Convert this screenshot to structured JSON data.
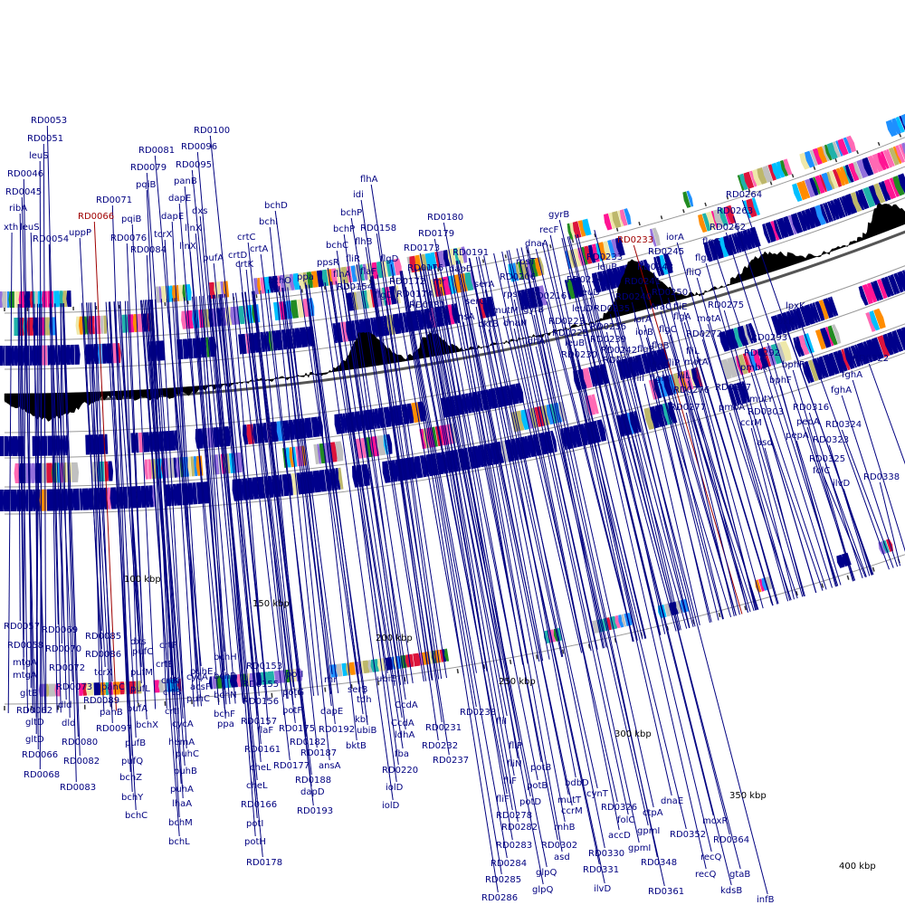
{
  "colors": {
    "label": "#000080",
    "highlight": "#a00000",
    "ring_line": "#999999",
    "dark_ring": "#555555",
    "feature_default": "#00008b",
    "gc_skew": "#000000",
    "palette": [
      "#00008b",
      "#1e90ff",
      "#00bfff",
      "#228b22",
      "#ff1493",
      "#dc143c",
      "#ff8c00",
      "#eee8aa",
      "#bdb76b",
      "#9370db",
      "#c0c0c0",
      "#20b2aa",
      "#ff69b4"
    ]
  },
  "scale_labels": [
    "100 kbp",
    "150 kbp",
    "200 kbp",
    "250 kbp",
    "300 kbp",
    "350 kbp",
    "400 kbp"
  ],
  "upper_labels": [
    [
      "xth",
      4,
      254
    ],
    [
      "ribA",
      10,
      233
    ],
    [
      "leuS",
      22,
      254
    ],
    [
      "RD0045",
      6,
      215
    ],
    [
      "RD0046",
      8,
      195
    ],
    [
      "leuS",
      32,
      175
    ],
    [
      "RD0051",
      30,
      156
    ],
    [
      "RD0053",
      34,
      136
    ],
    [
      "RD0054",
      36,
      267
    ],
    [
      "uppP",
      76,
      260
    ],
    [
      "RD0066",
      86,
      242
    ],
    [
      "RD0071",
      106,
      224
    ],
    [
      "RD0076",
      122,
      266
    ],
    [
      "pqiB",
      134,
      245
    ],
    [
      "RD0079",
      144,
      188
    ],
    [
      "pqiB",
      150,
      207
    ],
    [
      "RD0081",
      153,
      169
    ],
    [
      "RD0084",
      144,
      279
    ],
    [
      "tcrX",
      170,
      262
    ],
    [
      "dapE",
      178,
      242
    ],
    [
      "dapE",
      186,
      222
    ],
    [
      "panB",
      192,
      203
    ],
    [
      "RD0095",
      194,
      185
    ],
    [
      "RD0096",
      200,
      165
    ],
    [
      "RD0100",
      214,
      147
    ],
    [
      "dxs",
      212,
      236
    ],
    [
      "linX",
      204,
      255
    ],
    [
      "linX",
      198,
      275
    ],
    [
      "pufA",
      224,
      288
    ],
    [
      "crtC",
      262,
      265
    ],
    [
      "crtD",
      252,
      285
    ],
    [
      "crtK",
      260,
      295
    ],
    [
      "crtA",
      276,
      278
    ],
    [
      "bchI",
      286,
      248
    ],
    [
      "bchD",
      292,
      230
    ],
    [
      "bchO",
      296,
      313
    ],
    [
      "ppa",
      328,
      309
    ],
    [
      "idi",
      390,
      218
    ],
    [
      "flhA",
      398,
      201
    ],
    [
      "bchP",
      376,
      238
    ],
    [
      "bchP",
      368,
      256
    ],
    [
      "bchC",
      360,
      274
    ],
    [
      "ppsR",
      350,
      293
    ],
    [
      "flhA",
      368,
      306
    ],
    [
      "fliR",
      382,
      289
    ],
    [
      "flhB",
      392,
      270
    ],
    [
      "RD0158",
      398,
      255
    ],
    [
      "flaF",
      398,
      303
    ],
    [
      "RD0154",
      372,
      320
    ],
    [
      "flgD",
      420,
      289
    ],
    [
      "flgD",
      414,
      329
    ],
    [
      "RD0172",
      430,
      314
    ],
    [
      "RD0173",
      446,
      277
    ],
    [
      "RD0174",
      438,
      328
    ],
    [
      "RD0176",
      450,
      299
    ],
    [
      "RD0179",
      462,
      261
    ],
    [
      "RD0180",
      472,
      243
    ],
    [
      "RD0181",
      452,
      340
    ],
    [
      "rnr",
      478,
      314
    ],
    [
      "RD0191",
      500,
      282
    ],
    [
      "dapD",
      496,
      300
    ],
    [
      "serA",
      524,
      317
    ],
    [
      "serC",
      514,
      336
    ],
    [
      "ansA",
      500,
      353
    ],
    [
      "bktB",
      528,
      361
    ],
    [
      "dnaA",
      580,
      272
    ],
    [
      "recF",
      596,
      257
    ],
    [
      "gyrB",
      606,
      240
    ],
    [
      "RD0206",
      552,
      309
    ],
    [
      "rpsT",
      570,
      292
    ],
    [
      "rpsT",
      556,
      328
    ],
    [
      "mutM",
      544,
      346
    ],
    [
      "dnaN",
      556,
      360
    ],
    [
      "gyrB",
      578,
      345
    ],
    [
      "RD0216",
      586,
      330
    ],
    [
      "ldhA",
      580,
      380
    ],
    [
      "RD0223",
      606,
      358
    ],
    [
      "RD0225",
      610,
      371
    ],
    [
      "leuB",
      624,
      382
    ],
    [
      "RD0230",
      620,
      395
    ],
    [
      "RD0224",
      626,
      312
    ],
    [
      "leuD",
      640,
      326
    ],
    [
      "leuD",
      632,
      344
    ],
    [
      "RD0235",
      656,
      344
    ],
    [
      "RD0236",
      652,
      364
    ],
    [
      "RD0239",
      652,
      378
    ],
    [
      "RD0242",
      664,
      390
    ],
    [
      "RD0244",
      666,
      401
    ],
    [
      "RD0233",
      682,
      268
    ],
    [
      "RD0233",
      648,
      287
    ],
    [
      "leuB",
      660,
      298
    ],
    [
      "RD0240",
      680,
      331
    ],
    [
      "RD0241",
      690,
      314
    ],
    [
      "RD0243",
      704,
      298
    ],
    [
      "RD0245",
      716,
      281
    ],
    [
      "iorA",
      736,
      265
    ],
    [
      "iorA",
      700,
      356
    ],
    [
      "iorB",
      702,
      370
    ],
    [
      "flgB",
      704,
      389
    ],
    [
      "fliI",
      700,
      421
    ],
    [
      "flgH",
      718,
      421
    ],
    [
      "flgB",
      720,
      407
    ],
    [
      "fliP",
      736,
      404
    ],
    [
      "flgB",
      720,
      385
    ],
    [
      "AraC",
      718,
      342
    ],
    [
      "RD0250",
      720,
      326
    ],
    [
      "flgC",
      728,
      367
    ],
    [
      "flgA",
      744,
      353
    ],
    [
      "fliE",
      744,
      342
    ],
    [
      "fliQ",
      758,
      304
    ],
    [
      "flgF",
      768,
      288
    ],
    [
      "flgG",
      776,
      270
    ],
    [
      "RD0262",
      784,
      254
    ],
    [
      "RD0263",
      792,
      236
    ],
    [
      "RD0264",
      802,
      218
    ],
    [
      "motA",
      770,
      355
    ],
    [
      "RD0272",
      758,
      372
    ],
    [
      "fliL",
      758,
      391
    ],
    [
      "motA",
      756,
      403
    ],
    [
      "fliL",
      748,
      418
    ],
    [
      "RD0275",
      782,
      340
    ],
    [
      "RD0276",
      744,
      434
    ],
    [
      "RD0277",
      740,
      453
    ],
    [
      "RD0287",
      790,
      431
    ],
    [
      "pmbA",
      794,
      453
    ],
    [
      "pmbA",
      818,
      409
    ],
    [
      "mutY",
      828,
      444
    ],
    [
      "RD0292",
      822,
      393
    ],
    [
      "RD0293",
      830,
      376
    ],
    [
      "lpxK",
      856,
      358
    ],
    [
      "lpxK",
      868,
      341
    ],
    [
      "ccrM",
      818,
      470
    ],
    [
      "RD0303",
      826,
      458
    ],
    [
      "asd",
      836,
      492
    ],
    [
      "bphF",
      850,
      423
    ],
    [
      "bphF",
      864,
      406
    ],
    [
      "RD0316",
      876,
      453
    ],
    [
      "pepA",
      868,
      484
    ],
    [
      "pepA",
      880,
      469
    ],
    [
      "RD0322",
      942,
      399
    ],
    [
      "fghA",
      930,
      417
    ],
    [
      "fghA",
      918,
      434
    ],
    [
      "RD0324",
      912,
      472
    ],
    [
      "RD0323",
      898,
      489
    ],
    [
      "RD0325",
      894,
      510
    ],
    [
      "folC",
      898,
      523
    ],
    [
      "ilvD",
      920,
      537
    ],
    [
      "RD0338",
      954,
      530
    ]
  ],
  "lower_labels": [
    [
      "RD0057",
      4,
      695
    ],
    [
      "RD0058",
      8,
      716
    ],
    [
      "mtgA",
      14,
      735
    ],
    [
      "mtgA",
      14,
      749
    ],
    [
      "gltB",
      22,
      769
    ],
    [
      "RD0062",
      18,
      788
    ],
    [
      "gltD",
      28,
      801
    ],
    [
      "gltD",
      28,
      820
    ],
    [
      "RD0066",
      24,
      837
    ],
    [
      "RD0068",
      26,
      859
    ],
    [
      "RD0069",
      46,
      699
    ],
    [
      "RD0070",
      50,
      720
    ],
    [
      "RD0072",
      54,
      741
    ],
    [
      "RD0073",
      62,
      762
    ],
    [
      "dld",
      64,
      782
    ],
    [
      "dld",
      68,
      802
    ],
    [
      "RD0080",
      68,
      823
    ],
    [
      "RD0082",
      70,
      844
    ],
    [
      "RD0083",
      66,
      873
    ],
    [
      "RD0085",
      94,
      706
    ],
    [
      "RD0086",
      94,
      726
    ],
    [
      "tcrX",
      104,
      746
    ],
    [
      "panC",
      112,
      762
    ],
    [
      "panB",
      110,
      790
    ],
    [
      "RD0089",
      92,
      777
    ],
    [
      "RD0097",
      106,
      808
    ],
    [
      "dxs",
      144,
      712
    ],
    [
      "pufC",
      146,
      723
    ],
    [
      "pufM",
      144,
      746
    ],
    [
      "pufL",
      144,
      764
    ],
    [
      "pufA",
      140,
      786
    ],
    [
      "pufB",
      138,
      824
    ],
    [
      "pufQ",
      134,
      844
    ],
    [
      "bchZ",
      132,
      862
    ],
    [
      "bchY",
      134,
      884
    ],
    [
      "bchC",
      138,
      904
    ],
    [
      "bchX",
      150,
      804
    ],
    [
      "crtF",
      176,
      716
    ],
    [
      "crtE",
      172,
      737
    ],
    [
      "crtK",
      178,
      755
    ],
    [
      "crtB",
      180,
      768
    ],
    [
      "crtI",
      182,
      789
    ],
    [
      "cycA",
      190,
      803
    ],
    [
      "hemA",
      186,
      823
    ],
    [
      "puhC",
      194,
      836
    ],
    [
      "puhB",
      192,
      855
    ],
    [
      "puhA",
      188,
      875
    ],
    [
      "lhaA",
      190,
      891
    ],
    [
      "bchM",
      186,
      912
    ],
    [
      "bchL",
      186,
      933
    ],
    [
      "cycA",
      206,
      751
    ],
    [
      "puhE",
      210,
      745
    ],
    [
      "acsF",
      210,
      762
    ],
    [
      "puhC",
      206,
      775
    ],
    [
      "bchH",
      236,
      729
    ],
    [
      "bchB",
      236,
      750
    ],
    [
      "bchN",
      236,
      771
    ],
    [
      "bchF",
      236,
      792
    ],
    [
      "ppa",
      240,
      803
    ],
    [
      "RD0153",
      272,
      739
    ],
    [
      "RD0155",
      268,
      759
    ],
    [
      "RD0156",
      268,
      778
    ],
    [
      "RD0157",
      266,
      800
    ],
    [
      "flaF",
      284,
      810
    ],
    [
      "RD0161",
      270,
      831
    ],
    [
      "cheL",
      276,
      851
    ],
    [
      "cheL",
      272,
      871
    ],
    [
      "RD0166",
      266,
      892
    ],
    [
      "potI",
      272,
      913
    ],
    [
      "potH",
      270,
      933
    ],
    [
      "RD0178",
      272,
      956
    ],
    [
      "potI",
      316,
      748
    ],
    [
      "potG",
      312,
      768
    ],
    [
      "potF",
      312,
      788
    ],
    [
      "RD0175",
      308,
      808
    ],
    [
      "RD0177",
      302,
      849
    ],
    [
      "RD0182",
      320,
      823
    ],
    [
      "rnr",
      358,
      754
    ],
    [
      "dapE",
      354,
      789
    ],
    [
      "RD0192",
      352,
      809
    ],
    [
      "RD0187",
      332,
      835
    ],
    [
      "RD0188",
      326,
      865
    ],
    [
      "dapD",
      332,
      878
    ],
    [
      "RD0193",
      328,
      899
    ],
    [
      "ansA",
      352,
      849
    ],
    [
      "serB",
      384,
      765
    ],
    [
      "tdh",
      394,
      776
    ],
    [
      "kbl",
      392,
      798
    ],
    [
      "ubiB",
      394,
      810
    ],
    [
      "bktB",
      382,
      827
    ],
    [
      "ubiE",
      416,
      753
    ],
    [
      "CcdA",
      436,
      782
    ],
    [
      "CcdA",
      432,
      802
    ],
    [
      "ldhA",
      436,
      815
    ],
    [
      "fba",
      436,
      836
    ],
    [
      "RD0220",
      422,
      854
    ],
    [
      "iolD",
      426,
      873
    ],
    [
      "iolD",
      422,
      893
    ],
    [
      "RD0231",
      470,
      807
    ],
    [
      "RD0232",
      466,
      827
    ],
    [
      "RD0237",
      478,
      843
    ],
    [
      "RD0238",
      508,
      790
    ],
    [
      "fliI",
      548,
      800
    ],
    [
      "fliP",
      562,
      827
    ],
    [
      "fliN",
      560,
      847
    ],
    [
      "fliF",
      556,
      866
    ],
    [
      "fliF",
      548,
      886
    ],
    [
      "potB",
      586,
      851
    ],
    [
      "potB",
      582,
      871
    ],
    [
      "potD",
      574,
      889
    ],
    [
      "RD0278",
      548,
      904
    ],
    [
      "RD0282",
      554,
      917
    ],
    [
      "RD0283",
      548,
      937
    ],
    [
      "RD0284",
      542,
      957
    ],
    [
      "RD0285",
      536,
      975
    ],
    [
      "RD0286",
      532,
      995
    ],
    [
      "bdbD",
      624,
      868
    ],
    [
      "mutT",
      616,
      887
    ],
    [
      "ccrM",
      620,
      899
    ],
    [
      "rnhB",
      612,
      917
    ],
    [
      "RD0302",
      598,
      937
    ],
    [
      "asd",
      612,
      950
    ],
    [
      "glpQ",
      592,
      967
    ],
    [
      "glpQ",
      588,
      986
    ],
    [
      "cynT",
      648,
      880
    ],
    [
      "RD0326",
      664,
      895
    ],
    [
      "folC",
      682,
      909
    ],
    [
      "accD",
      672,
      926
    ],
    [
      "RD0330",
      650,
      946
    ],
    [
      "RD0331",
      644,
      964
    ],
    [
      "ilvD",
      656,
      985
    ],
    [
      "ctpA",
      710,
      901
    ],
    [
      "gpmI",
      704,
      921
    ],
    [
      "gpmI",
      694,
      940
    ],
    [
      "dnaE",
      730,
      888
    ],
    [
      "RD0348",
      708,
      956
    ],
    [
      "RD0352",
      740,
      925
    ],
    [
      "moxR",
      776,
      910
    ],
    [
      "RD0364",
      788,
      931
    ],
    [
      "recQ",
      774,
      950
    ],
    [
      "recQ",
      768,
      969
    ],
    [
      "gtaB",
      806,
      969
    ],
    [
      "kdsB",
      796,
      987
    ],
    [
      "RD0361",
      716,
      988
    ],
    [
      "infB",
      836,
      997
    ]
  ],
  "highlighted": [
    "RD0066",
    "RD0233"
  ]
}
